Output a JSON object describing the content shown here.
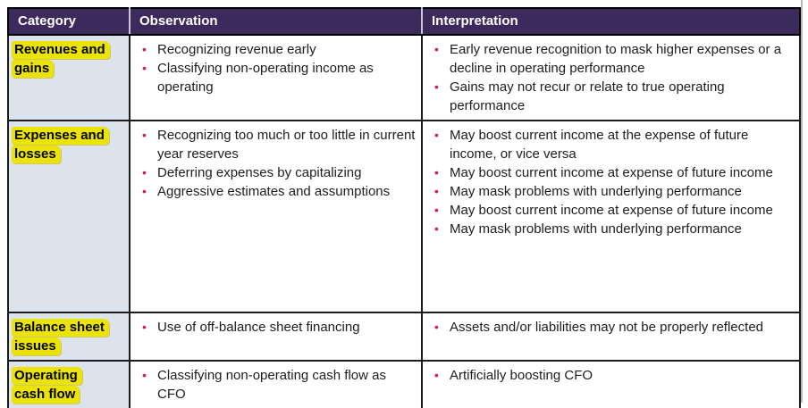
{
  "colors": {
    "header_bg": "#3b2a5c",
    "header_text": "#ffffff",
    "category_bg": "#dce3ed",
    "highlight": "#eae303",
    "bullet": "#cf2050",
    "body_text": "#1d1d1d",
    "border": "#000000",
    "inner_border": "#1c1c1c",
    "header_divider": "#c9c9d2",
    "edge_line": "#b9b9b9"
  },
  "table": {
    "headers": [
      "Category",
      "Observation",
      "Interpretation"
    ],
    "rows": [
      {
        "category": "Revenues and\ngains",
        "observations": [
          "Recognizing revenue early",
          "Classifying non-operating income as operating"
        ],
        "interpretations": [
          "Early revenue recognition to mask higher expenses or a decline in operating performance",
          "Gains may not recur or relate to true operating performance"
        ]
      },
      {
        "category": "Expenses and\nlosses",
        "observations": [
          "Recognizing too much or too little in current year reserves",
          "Deferring expenses by capitalizing",
          "Aggressive estimates and assumptions"
        ],
        "interpretations": [
          "May boost current income at the expense of future income, or vice versa",
          "May boost current income at expense of future income",
          "May mask problems with underlying performance",
          "May boost current income at expense of future income",
          "May mask problems with underlying performance"
        ]
      },
      {
        "category": "Balance sheet\nissues",
        "observations": [
          "Use of off-balance sheet financing"
        ],
        "interpretations": [
          "Assets and/or liabilities may not be properly reflected"
        ]
      },
      {
        "category": "Operating\ncash flow",
        "observations": [
          "Classifying non-operating cash flow as CFO"
        ],
        "interpretations": [
          "Artificially boosting CFO"
        ]
      }
    ]
  }
}
